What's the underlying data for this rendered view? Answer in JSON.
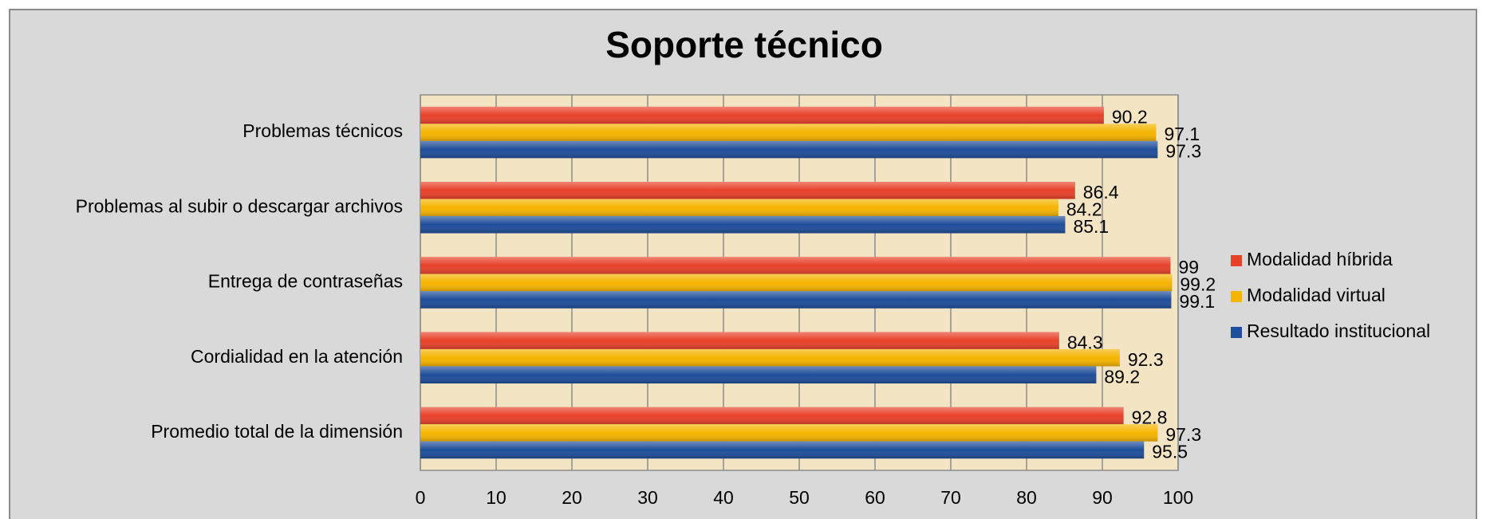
{
  "chart_data": {
    "type": "barh",
    "title": "Soporte técnico",
    "categories": [
      "Problemas técnicos",
      "Problemas al subir o descargar archivos",
      "Entrega de contraseñas",
      "Cordialidad en la  atención",
      "Promedio total de la dimensión"
    ],
    "series": [
      {
        "name": "Modalidad híbrida",
        "color": "#e8412a",
        "values": [
          90.2,
          86.4,
          99,
          84.3,
          92.8
        ]
      },
      {
        "name": "Modalidad virtual",
        "color": "#f5b400",
        "values": [
          97.1,
          84.2,
          99.2,
          92.3,
          97.3
        ]
      },
      {
        "name": "Resultado institucional",
        "color": "#1f4e9a",
        "values": [
          97.3,
          85.1,
          99.1,
          89.2,
          95.5
        ]
      }
    ],
    "xlim": [
      0,
      100
    ],
    "xticks": [
      0,
      10,
      20,
      30,
      40,
      50,
      60,
      70,
      80,
      90,
      100
    ],
    "grid": true,
    "legend": "right"
  }
}
